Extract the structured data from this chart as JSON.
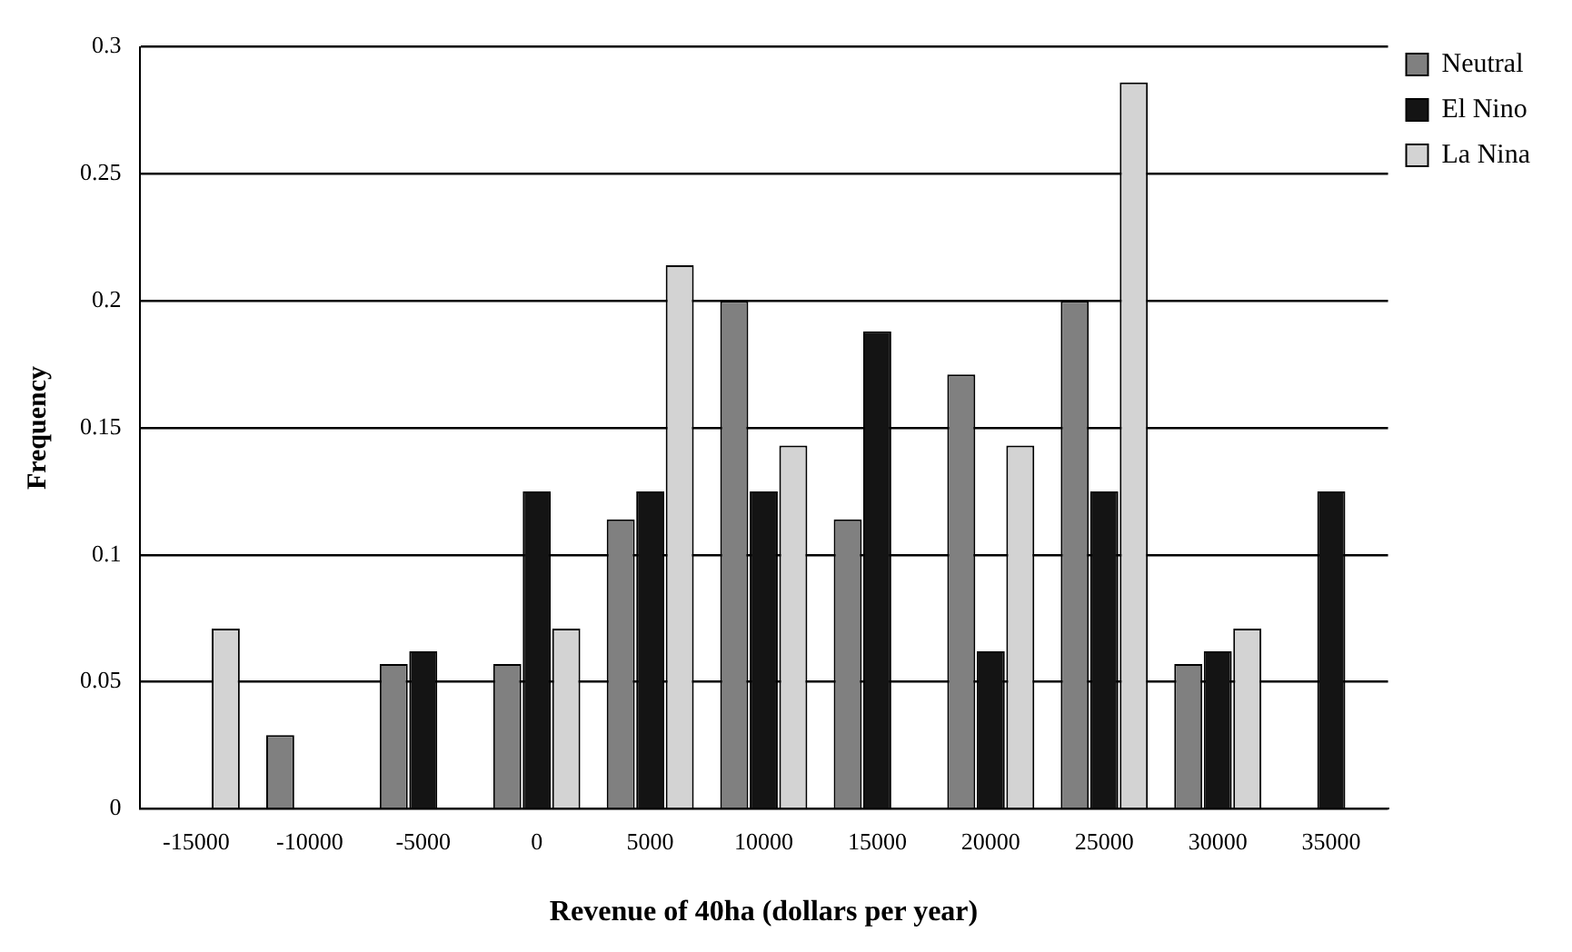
{
  "chart_data": {
    "type": "bar",
    "xlabel": "Revenue of 40ha (dollars per year)",
    "ylabel": "Frequency",
    "categories": [
      "-15000",
      "-10000",
      "-5000",
      "0",
      "5000",
      "10000",
      "15000",
      "20000",
      "25000",
      "30000",
      "35000"
    ],
    "series": [
      {
        "name": "Neutral",
        "color": "#808080",
        "values": [
          0,
          0.029,
          0.057,
          0.057,
          0.114,
          0.2,
          0.114,
          0.171,
          0.2,
          0.057,
          0
        ]
      },
      {
        "name": "El Nino",
        "color": "#141414",
        "values": [
          0,
          0,
          0.062,
          0.125,
          0.125,
          0.125,
          0.188,
          0.062,
          0.125,
          0.062,
          0.125
        ]
      },
      {
        "name": "La Nina",
        "color": "#d3d3d3",
        "values": [
          0.071,
          0,
          0,
          0.071,
          0.214,
          0.143,
          0,
          0.143,
          0.286,
          0.071,
          0
        ]
      }
    ],
    "ylim": [
      0,
      0.3
    ],
    "yticks": [
      0,
      0.05,
      0.1,
      0.15,
      0.2,
      0.25,
      0.3
    ],
    "grid": "y",
    "legend": "right"
  }
}
